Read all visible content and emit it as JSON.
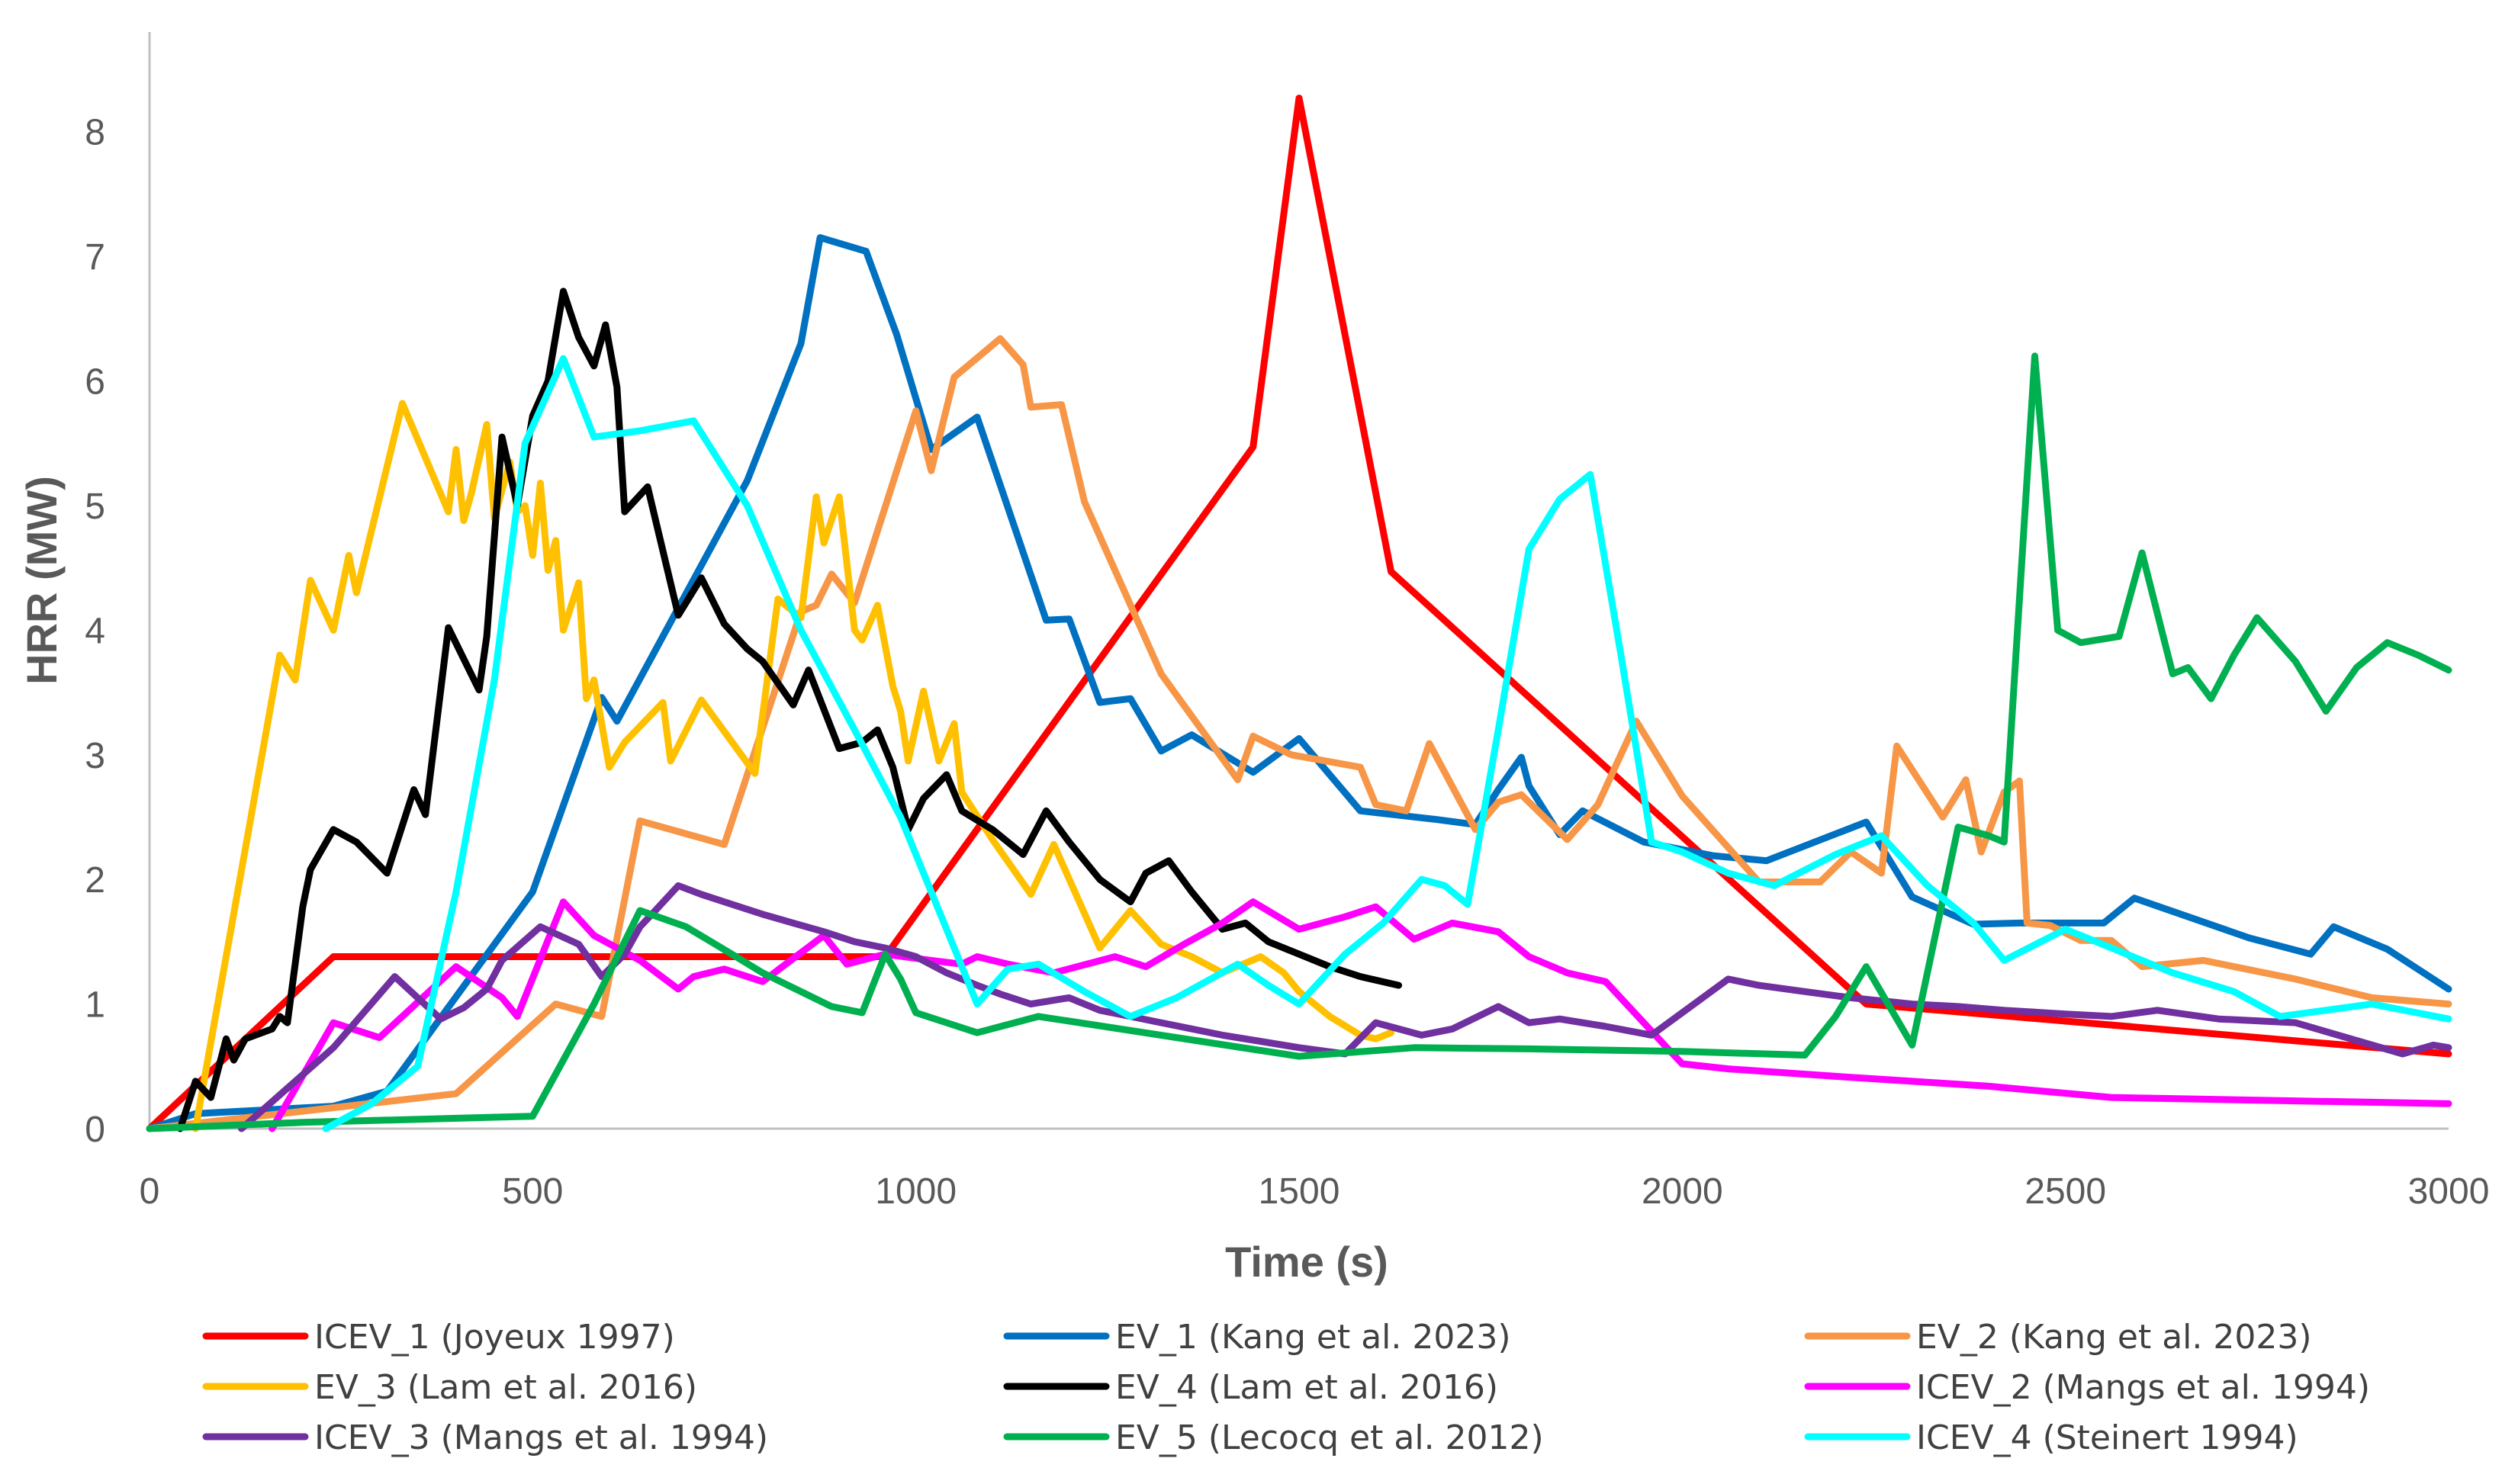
{
  "chart_data": {
    "type": "line",
    "title": "",
    "xlabel": "Time (s)",
    "ylabel": "HRR (MW)",
    "xlim": [
      0,
      3000
    ],
    "ylim": [
      0,
      8.8
    ],
    "xticks": [
      0,
      500,
      1000,
      1500,
      2000,
      2500,
      3000
    ],
    "yticks": [
      0,
      1,
      2,
      3,
      4,
      5,
      6,
      7,
      8
    ],
    "grid": false,
    "legend_position": "bottom",
    "series": [
      {
        "name": "ICEV_1 (Joyeux 1997)",
        "color": "#FF0000",
        "x": [
          0,
          240,
          960,
          1440,
          1500,
          1620,
          2240,
          3000
        ],
        "y": [
          0,
          1.38,
          1.38,
          5.47,
          8.27,
          4.47,
          1.0,
          0.6
        ]
      },
      {
        "name": "EV_1 (Kang et al. 2023)",
        "color": "#0070C0",
        "x": [
          0,
          60,
          240,
          310,
          500,
          590,
          610,
          780,
          850,
          875,
          935,
          975,
          1020,
          1080,
          1170,
          1200,
          1240,
          1280,
          1320,
          1360,
          1440,
          1500,
          1580,
          1680,
          1730,
          1760,
          1790,
          1800,
          1840,
          1870,
          1950,
          2040,
          2110,
          2240,
          2300,
          2380,
          2440,
          2500,
          2550,
          2590,
          2740,
          2820,
          2850,
          2920,
          3000
        ],
        "y": [
          0,
          0.12,
          0.18,
          0.3,
          1.9,
          3.46,
          3.27,
          5.2,
          6.3,
          7.15,
          7.04,
          6.37,
          5.45,
          5.71,
          4.08,
          4.09,
          3.42,
          3.45,
          3.03,
          3.16,
          2.86,
          3.13,
          2.55,
          2.48,
          2.44,
          2.72,
          2.98,
          2.75,
          2.36,
          2.55,
          2.3,
          2.19,
          2.15,
          2.46,
          1.86,
          1.64,
          1.65,
          1.65,
          1.65,
          1.85,
          1.53,
          1.4,
          1.62,
          1.44,
          1.12
        ]
      },
      {
        "name": "EV_2 (Kang et al. 2023)",
        "color": "#F79646",
        "x": [
          0,
          400,
          530,
          590,
          640,
          750,
          850,
          870,
          890,
          920,
          1000,
          1020,
          1050,
          1110,
          1140,
          1150,
          1190,
          1220,
          1320,
          1420,
          1440,
          1490,
          1580,
          1600,
          1640,
          1670,
          1730,
          1760,
          1790,
          1850,
          1890,
          1940,
          2000,
          2100,
          2180,
          2220,
          2260,
          2280,
          2340,
          2370,
          2390,
          2420,
          2440,
          2450,
          2480,
          2520,
          2560,
          2600,
          2680,
          2800,
          2900,
          3000
        ],
        "y": [
          0,
          0.28,
          1.0,
          0.9,
          2.47,
          2.28,
          4.15,
          4.2,
          4.45,
          4.22,
          5.76,
          5.28,
          6.03,
          6.34,
          6.13,
          5.79,
          5.81,
          5.03,
          3.65,
          2.8,
          3.15,
          3.0,
          2.9,
          2.6,
          2.55,
          3.09,
          2.4,
          2.62,
          2.68,
          2.32,
          2.6,
          3.27,
          2.67,
          1.98,
          1.98,
          2.22,
          2.05,
          3.07,
          2.5,
          2.8,
          2.22,
          2.7,
          2.79,
          1.65,
          1.63,
          1.51,
          1.51,
          1.3,
          1.35,
          1.2,
          1.05,
          1.0
        ]
      },
      {
        "name": "EV_3 (Lam et al. 2016)",
        "color": "#FFC000",
        "x": [
          60,
          170,
          190,
          210,
          240,
          260,
          270,
          330,
          390,
          400,
          410,
          420,
          440,
          450,
          470,
          480,
          490,
          500,
          510,
          520,
          530,
          540,
          560,
          570,
          580,
          600,
          620,
          670,
          680,
          720,
          790,
          820,
          850,
          870,
          880,
          900,
          920,
          930,
          950,
          970,
          980,
          990,
          1010,
          1030,
          1050,
          1060,
          1100,
          1150,
          1180,
          1240,
          1280,
          1320,
          1360,
          1400,
          1450,
          1480,
          1500,
          1540,
          1580,
          1600,
          1620
        ],
        "y": [
          0,
          3.8,
          3.6,
          4.4,
          4.0,
          4.6,
          4.3,
          5.82,
          4.95,
          5.45,
          4.88,
          5.1,
          5.65,
          4.9,
          5.35,
          4.95,
          5.0,
          4.6,
          5.18,
          4.48,
          4.72,
          4.0,
          4.38,
          3.45,
          3.6,
          2.9,
          3.1,
          3.42,
          2.95,
          3.44,
          2.85,
          4.25,
          4.1,
          5.07,
          4.7,
          5.07,
          4.0,
          3.92,
          4.2,
          3.55,
          3.35,
          2.95,
          3.51,
          2.95,
          3.25,
          2.7,
          2.32,
          1.88,
          2.28,
          1.45,
          1.75,
          1.48,
          1.38,
          1.25,
          1.38,
          1.25,
          1.1,
          0.9,
          0.75,
          0.72,
          0.77
        ]
      },
      {
        "name": "EV_4 (Lam et al. 2016)",
        "color": "#000000",
        "x": [
          40,
          60,
          80,
          100,
          110,
          125,
          160,
          170,
          180,
          200,
          210,
          240,
          270,
          310,
          345,
          360,
          390,
          430,
          440,
          460,
          480,
          500,
          520,
          540,
          560,
          580,
          595,
          610,
          620,
          650,
          690,
          720,
          750,
          780,
          800,
          840,
          860,
          900,
          930,
          950,
          970,
          990,
          1010,
          1040,
          1060,
          1100,
          1140,
          1170,
          1200,
          1240,
          1280,
          1300,
          1330,
          1360,
          1400,
          1430,
          1460,
          1500,
          1540,
          1580,
          1630
        ],
        "y": [
          0,
          0.38,
          0.25,
          0.72,
          0.55,
          0.72,
          0.8,
          0.9,
          0.85,
          1.78,
          2.08,
          2.4,
          2.3,
          2.05,
          2.72,
          2.52,
          4.02,
          3.52,
          3.95,
          5.55,
          5.0,
          5.72,
          6.0,
          6.72,
          6.35,
          6.12,
          6.45,
          5.95,
          4.95,
          5.15,
          4.12,
          4.42,
          4.05,
          3.85,
          3.75,
          3.4,
          3.68,
          3.05,
          3.1,
          3.2,
          2.9,
          2.4,
          2.65,
          2.84,
          2.55,
          2.4,
          2.2,
          2.55,
          2.3,
          2.0,
          1.82,
          2.05,
          2.15,
          1.9,
          1.6,
          1.65,
          1.5,
          1.4,
          1.3,
          1.22,
          1.15
        ]
      },
      {
        "name": "ICEV_2 (Mangs et al. 1994)",
        "color": "#FF00FF",
        "x": [
          160,
          240,
          300,
          400,
          460,
          480,
          540,
          580,
          640,
          690,
          710,
          750,
          800,
          880,
          910,
          960,
          1020,
          1060,
          1080,
          1120,
          1180,
          1260,
          1300,
          1350,
          1400,
          1440,
          1500,
          1560,
          1600,
          1650,
          1700,
          1760,
          1800,
          1850,
          1900,
          1980,
          2000,
          2060,
          2200,
          2300,
          2400,
          2560,
          3000
        ],
        "y": [
          0,
          0.85,
          0.73,
          1.3,
          1.05,
          0.9,
          1.82,
          1.55,
          1.35,
          1.12,
          1.22,
          1.28,
          1.18,
          1.55,
          1.32,
          1.4,
          1.35,
          1.32,
          1.38,
          1.32,
          1.25,
          1.38,
          1.3,
          1.48,
          1.65,
          1.82,
          1.6,
          1.7,
          1.78,
          1.52,
          1.65,
          1.58,
          1.38,
          1.25,
          1.18,
          0.65,
          0.52,
          0.48,
          0.42,
          0.38,
          0.34,
          0.25,
          0.2
        ]
      },
      {
        "name": "ICEV_3 (Mangs et al. 1994)",
        "color": "#7030A0",
        "x": [
          120,
          240,
          320,
          350,
          380,
          410,
          440,
          460,
          510,
          560,
          590,
          620,
          640,
          660,
          690,
          720,
          760,
          800,
          840,
          880,
          920,
          960,
          1000,
          1040,
          1080,
          1110,
          1150,
          1200,
          1240,
          1280,
          1320,
          1400,
          1500,
          1560,
          1600,
          1660,
          1700,
          1760,
          1800,
          1840,
          1900,
          1960,
          2060,
          2100,
          2160,
          2220,
          2300,
          2360,
          2420,
          2500,
          2560,
          2620,
          2700,
          2800,
          2940,
          2980,
          3000
        ],
        "y": [
          0,
          0.65,
          1.22,
          1.05,
          0.88,
          0.97,
          1.12,
          1.35,
          1.62,
          1.48,
          1.22,
          1.4,
          1.62,
          1.75,
          1.95,
          1.88,
          1.8,
          1.72,
          1.65,
          1.58,
          1.5,
          1.45,
          1.38,
          1.25,
          1.15,
          1.08,
          1.0,
          1.05,
          0.95,
          0.9,
          0.85,
          0.75,
          0.65,
          0.6,
          0.85,
          0.75,
          0.8,
          0.98,
          0.85,
          0.88,
          0.82,
          0.75,
          1.2,
          1.15,
          1.1,
          1.05,
          1.0,
          0.98,
          0.95,
          0.92,
          0.9,
          0.95,
          0.88,
          0.85,
          0.6,
          0.67,
          0.65
        ]
      },
      {
        "name": "EV_5 (Lecocq et al. 2012)",
        "color": "#00B050",
        "x": [
          0,
          200,
          500,
          580,
          640,
          700,
          760,
          800,
          850,
          890,
          930,
          960,
          980,
          1000,
          1080,
          1160,
          1500,
          1650,
          1800,
          2000,
          2160,
          2200,
          2240,
          2300,
          2360,
          2400,
          2420,
          2460,
          2490,
          2520,
          2570,
          2600,
          2640,
          2660,
          2690,
          2720,
          2750,
          2800,
          2840,
          2880,
          2920,
          2960,
          3000
        ],
        "y": [
          0,
          0.05,
          0.1,
          1.0,
          1.75,
          1.62,
          1.4,
          1.25,
          1.1,
          0.98,
          0.93,
          1.4,
          1.2,
          0.93,
          0.77,
          0.9,
          0.58,
          0.65,
          0.64,
          0.62,
          0.59,
          0.9,
          1.3,
          0.67,
          2.42,
          2.35,
          2.3,
          6.2,
          4.0,
          3.9,
          3.95,
          4.62,
          3.65,
          3.7,
          3.45,
          3.8,
          4.1,
          3.75,
          3.35,
          3.7,
          3.9,
          3.8,
          3.68
        ]
      },
      {
        "name": "ICEV_4 (Steinert 1994)",
        "color": "#00FFFF",
        "x": [
          230,
          290,
          350,
          400,
          450,
          490,
          540,
          580,
          640,
          710,
          780,
          850,
          920,
          980,
          1040,
          1080,
          1120,
          1160,
          1220,
          1280,
          1340,
          1420,
          1460,
          1500,
          1560,
          1610,
          1660,
          1690,
          1720,
          1760,
          1800,
          1840,
          1880,
          1920,
          1960,
          2000,
          2060,
          2120,
          2200,
          2260,
          2320,
          2380,
          2420,
          2500,
          2580,
          2640,
          2720,
          2780,
          2900,
          3000
        ],
        "y": [
          0,
          0.2,
          0.5,
          1.9,
          3.6,
          5.5,
          6.18,
          5.55,
          5.6,
          5.68,
          5.0,
          4.0,
          3.2,
          2.5,
          1.6,
          1.0,
          1.28,
          1.32,
          1.1,
          0.9,
          1.05,
          1.32,
          1.15,
          1.0,
          1.4,
          1.65,
          2.0,
          1.95,
          1.8,
          3.2,
          4.65,
          5.05,
          5.25,
          3.8,
          2.3,
          2.22,
          2.05,
          1.95,
          2.2,
          2.35,
          1.95,
          1.65,
          1.35,
          1.6,
          1.4,
          1.25,
          1.1,
          0.9,
          1.0,
          0.88
        ]
      }
    ]
  }
}
